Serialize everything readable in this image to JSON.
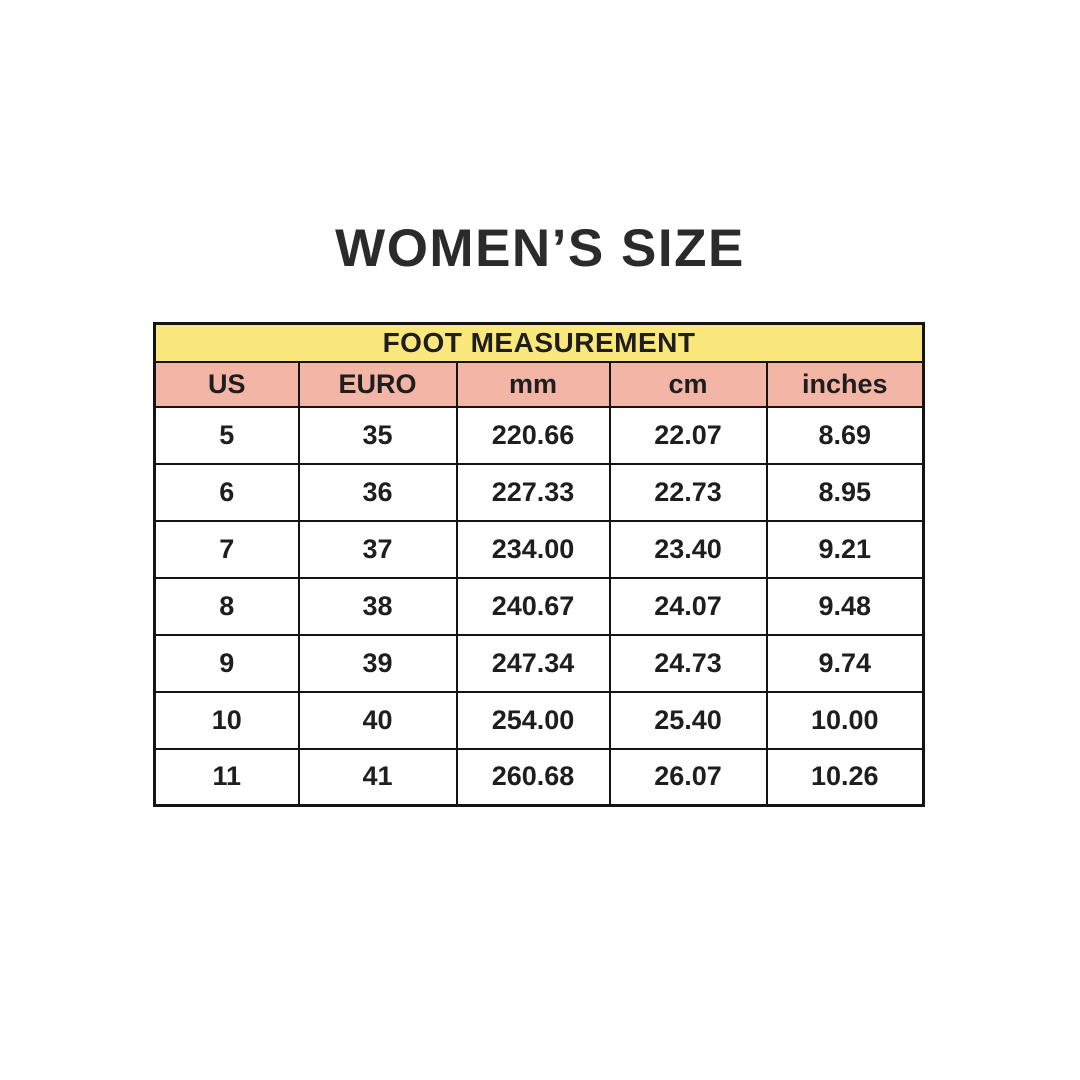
{
  "page": {
    "title": "WOMEN’S SIZE"
  },
  "colors": {
    "background": "#FFFFFF",
    "header_yellow": "#FAE87D",
    "header_pink": "#F3B5A5",
    "border": "#141414",
    "text": "#1E1E1E",
    "title_text": "#2B2B2B"
  },
  "chart_data": {
    "type": "table",
    "title": "WOMEN’S SIZE",
    "section_header": "FOOT MEASUREMENT",
    "columns": [
      "US",
      "EURO",
      "mm",
      "cm",
      "inches"
    ],
    "rows": [
      [
        "5",
        "35",
        "220.66",
        "22.07",
        "8.69"
      ],
      [
        "6",
        "36",
        "227.33",
        "22.73",
        "8.95"
      ],
      [
        "7",
        "37",
        "234.00",
        "23.40",
        "9.21"
      ],
      [
        "8",
        "38",
        "240.67",
        "24.07",
        "9.48"
      ],
      [
        "9",
        "39",
        "247.34",
        "24.73",
        "9.74"
      ],
      [
        "10",
        "40",
        "254.00",
        "25.40",
        "10.00"
      ],
      [
        "11",
        "41",
        "260.68",
        "26.07",
        "10.26"
      ]
    ]
  }
}
